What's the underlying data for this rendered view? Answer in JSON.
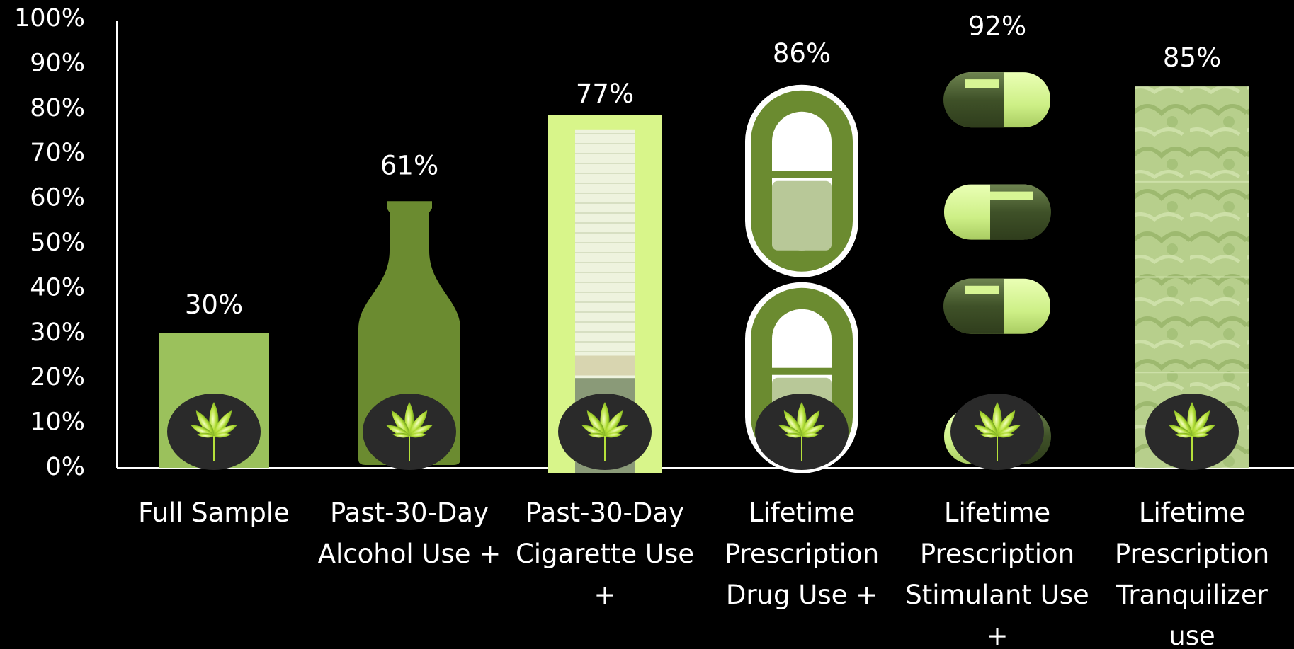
{
  "chart_data": {
    "type": "bar",
    "title": "",
    "xlabel": "",
    "ylabel": "",
    "ylim": [
      0,
      100
    ],
    "yticks": [
      "0%",
      "10%",
      "20%",
      "30%",
      "40%",
      "50%",
      "60%",
      "70%",
      "80%",
      "90%",
      "100%"
    ],
    "categories": [
      [
        "Full Sample"
      ],
      [
        "Past-30-Day",
        "Alcohol Use +"
      ],
      [
        "Past-30-Day",
        "Cigarette Use",
        "+"
      ],
      [
        "Lifetime",
        "Prescription",
        "Drug Use +"
      ],
      [
        "Lifetime",
        "Prescription",
        "Stimulant Use",
        "+"
      ],
      [
        "Lifetime",
        "Prescription",
        "Tranquilizer",
        "use"
      ]
    ],
    "values": [
      30,
      61,
      77,
      86,
      92,
      85
    ],
    "value_labels": [
      "30%",
      "61%",
      "77%",
      "86%",
      "92%",
      "85%"
    ],
    "bar_styles": [
      "solid",
      "bottle",
      "cigarette",
      "pill-outline",
      "capsules",
      "texture"
    ],
    "base_icon": "cannabis-leaf-icon",
    "grid": false,
    "colors": {
      "background": "#000000",
      "bar_light": "#9bc15c",
      "bar_dark": "#6b8b30",
      "cigarette_bg": "#d8f58a",
      "capsule_light": "#d7f594",
      "capsule_dark": "#4a5e32",
      "texture": "#b3cd8a",
      "leaf": "#9bd12d"
    }
  }
}
